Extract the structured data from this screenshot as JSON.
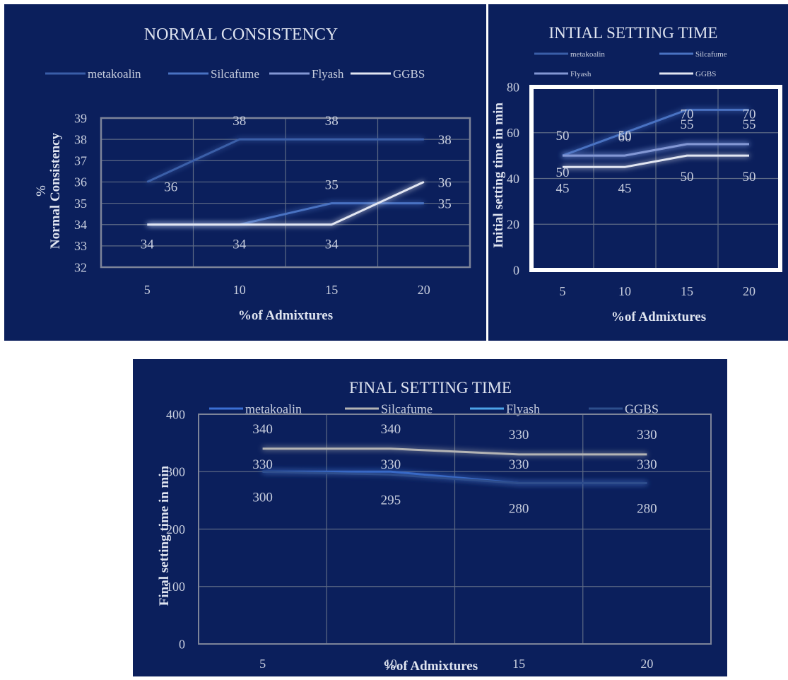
{
  "colors": {
    "background": "#0b1f5c",
    "grid": "#5d6a85",
    "text": "#c8cede",
    "title": "#dfe4f0",
    "metakoalin": "#3a5ea8",
    "silcafume": "#4a72c2",
    "flyash": "#8397d4",
    "ggbs": "#e2e6f2",
    "fst_metakoalin": "#3b6fd4",
    "fst_silcafume": "#b4b4b4",
    "fst_flyash": "#4ca3e8",
    "fst_ggbs": "#2d4e8c"
  },
  "chart_data": [
    {
      "type": "line",
      "title": "NORMAL CONSISTENCY",
      "xlabel": "%of Admixtures",
      "ylabel_line1": "%",
      "ylabel_line2": "Normal Consistency",
      "categories": [
        "5",
        "10",
        "15",
        "20"
      ],
      "ylim": [
        32,
        39
      ],
      "yticks": [
        "32",
        "33",
        "34",
        "35",
        "36",
        "37",
        "38",
        "39"
      ],
      "grid": true,
      "legend_position": "top",
      "series": [
        {
          "name": "metakoalin",
          "values": [
            36,
            38,
            38,
            38
          ]
        },
        {
          "name": "Silcafume",
          "values": [
            34,
            34,
            35,
            35
          ]
        },
        {
          "name": "Flyash",
          "values": [
            34,
            34,
            34,
            34
          ]
        },
        {
          "name": "GGBS",
          "values": [
            34,
            34,
            34,
            36
          ]
        }
      ],
      "data_labels": [
        {
          "text": "36",
          "x": 5,
          "y": 36,
          "pos": "right-below"
        },
        {
          "text": "38",
          "x": 10,
          "y": 38,
          "pos": "above"
        },
        {
          "text": "38",
          "x": 15,
          "y": 38,
          "pos": "above"
        },
        {
          "text": "38",
          "x": 20,
          "y": 38,
          "pos": "right"
        },
        {
          "text": "35",
          "x": 15,
          "y": 35,
          "pos": "above"
        },
        {
          "text": "35",
          "x": 20,
          "y": 35,
          "pos": "right"
        },
        {
          "text": "36",
          "x": 20,
          "y": 36,
          "pos": "right"
        },
        {
          "text": "34",
          "x": 5,
          "y": 34,
          "pos": "below"
        },
        {
          "text": "34",
          "x": 10,
          "y": 34,
          "pos": "below"
        },
        {
          "text": "34",
          "x": 15,
          "y": 34,
          "pos": "below"
        }
      ]
    },
    {
      "type": "line",
      "title": "INTIAL SETTING TIME",
      "xlabel": "%of Admixtures",
      "ylabel": "Initial setting time in min",
      "categories": [
        "5",
        "10",
        "15",
        "20"
      ],
      "ylim": [
        0,
        80
      ],
      "yticks": [
        "0",
        "20",
        "40",
        "60",
        "80"
      ],
      "grid": true,
      "legend_position": "top",
      "series": [
        {
          "name": "metakoalin",
          "values": [
            50,
            50,
            55,
            55
          ]
        },
        {
          "name": "Silcafume",
          "values": [
            50,
            60,
            70,
            70
          ]
        },
        {
          "name": "Flyash",
          "values": [
            50,
            50,
            55,
            55
          ]
        },
        {
          "name": "GGBS",
          "values": [
            45,
            45,
            50,
            50
          ]
        }
      ],
      "data_labels": [
        {
          "text": "50",
          "x": 5,
          "y": 50,
          "pos": "above"
        },
        {
          "text": "50",
          "x": 10,
          "y": 50,
          "pos": "above"
        },
        {
          "text": "55",
          "x": 15,
          "y": 55,
          "pos": "above"
        },
        {
          "text": "55",
          "x": 20,
          "y": 55,
          "pos": "above"
        },
        {
          "text": "70",
          "x": 15,
          "y": 70,
          "pos": "low"
        },
        {
          "text": "70",
          "x": 20,
          "y": 70,
          "pos": "low"
        },
        {
          "text": "60",
          "x": 10,
          "y": 60,
          "pos": "low"
        },
        {
          "text": "50",
          "x": 5,
          "y": 50,
          "pos": "lower"
        },
        {
          "text": "45",
          "x": 5,
          "y": 45,
          "pos": "below"
        },
        {
          "text": "45",
          "x": 10,
          "y": 45,
          "pos": "below"
        },
        {
          "text": "50",
          "x": 15,
          "y": 50,
          "pos": "below"
        },
        {
          "text": "50",
          "x": 20,
          "y": 50,
          "pos": "below"
        }
      ]
    },
    {
      "type": "line",
      "title": "FINAL SETTING TIME",
      "xlabel": "%of Admixtures",
      "ylabel": "Final setting time in min",
      "categories": [
        "5",
        "10",
        "15",
        "20"
      ],
      "ylim": [
        0,
        400
      ],
      "yticks": [
        "0",
        "100",
        "200",
        "300",
        "400"
      ],
      "grid": true,
      "legend_position": "top",
      "series": [
        {
          "name": "metakoalin",
          "values": [
            300,
            300,
            280,
            280
          ]
        },
        {
          "name": "Silcafume",
          "values": [
            340,
            340,
            330,
            330
          ]
        },
        {
          "name": "Flyash",
          "values": [
            330,
            330,
            330,
            330
          ]
        },
        {
          "name": "GGBS",
          "values": [
            300,
            295,
            280,
            280
          ]
        }
      ],
      "data_labels": [
        {
          "text": "340",
          "x": 5,
          "y": 340,
          "pos": "above"
        },
        {
          "text": "340",
          "x": 10,
          "y": 340,
          "pos": "above"
        },
        {
          "text": "330",
          "x": 15,
          "y": 330,
          "pos": "above"
        },
        {
          "text": "330",
          "x": 20,
          "y": 330,
          "pos": "above"
        },
        {
          "text": "330",
          "x": 5,
          "y": 330,
          "pos": "below"
        },
        {
          "text": "330",
          "x": 10,
          "y": 330,
          "pos": "below"
        },
        {
          "text": "330",
          "x": 15,
          "y": 330,
          "pos": "below"
        },
        {
          "text": "330",
          "x": 20,
          "y": 330,
          "pos": "below"
        },
        {
          "text": "300",
          "x": 5,
          "y": 300,
          "pos": "below"
        },
        {
          "text": "295",
          "x": 10,
          "y": 295,
          "pos": "below"
        },
        {
          "text": "280",
          "x": 15,
          "y": 280,
          "pos": "below"
        },
        {
          "text": "280",
          "x": 20,
          "y": 280,
          "pos": "below"
        }
      ]
    }
  ]
}
